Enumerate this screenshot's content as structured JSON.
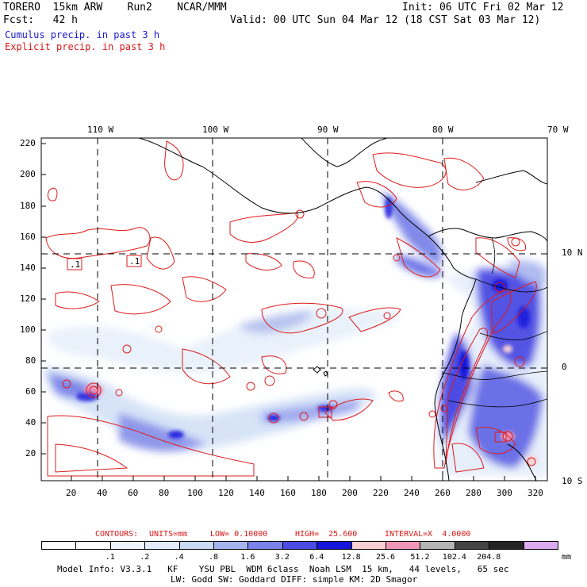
{
  "header": {
    "model": "TORERO  15km ARW    Run2    NCAR/MMM",
    "fcst": "Fcst:   42 h",
    "init": "Init: 06 UTC Fri 02 Mar 12",
    "valid": "Valid: 00 UTC Sun 04 Mar 12 (18 CST Sat 03 Mar 12)",
    "legend_cumulus": "Cumulus precip. in past 3 h",
    "legend_explicit": "Explicit precip. in past 3 h"
  },
  "axes": {
    "lon_labels": [
      "110 W",
      "100 W",
      "90 W",
      "80 W",
      "70 W"
    ],
    "lat_labels": [
      "10 N",
      "0",
      "10 S"
    ],
    "y_ticks": [
      "220",
      "200",
      "180",
      "160",
      "140",
      "120",
      "100",
      "80",
      "60",
      "40",
      "20"
    ],
    "x_ticks": [
      "20",
      "40",
      "60",
      "80",
      "100",
      "120",
      "140",
      "160",
      "180",
      "200",
      "220",
      "240",
      "260",
      "280",
      "300",
      "320"
    ]
  },
  "boxes": [
    ".1",
    ".1"
  ],
  "contours_info": {
    "label": "CONTOURS:",
    "units": "UNITS=mm",
    "low": "LOW= 0.10000",
    "high": "HIGH=  25.600",
    "interval": "INTERVAL=X  4.0000"
  },
  "colorbar": {
    "colors": [
      "#ffffff",
      "#ffffff",
      "#eef4fc",
      "#e2ecfa",
      "#cad9f4",
      "#a6b4ee",
      "#7b82e8",
      "#4c4ce4",
      "#1515dc",
      "#f8d0d4",
      "#f096b8",
      "#b4b4b4",
      "#444444",
      "#242424",
      "#dcaaf0"
    ],
    "labels": [
      ".1",
      ".2",
      ".4",
      ".8",
      "1.6",
      "3.2",
      "6.4",
      "12.8",
      "25.6",
      "51.2",
      "102.4",
      "204.8"
    ],
    "unit": "mm"
  },
  "footer": {
    "line1": "Model Info: V3.3.1   KF    YSU PBL  WDM 6class  Noah LSM  15 km,   44 levels,   65 sec",
    "line2": "LW: Godd SW: Goddard DIFF: simple KM: 2D Smagor"
  }
}
